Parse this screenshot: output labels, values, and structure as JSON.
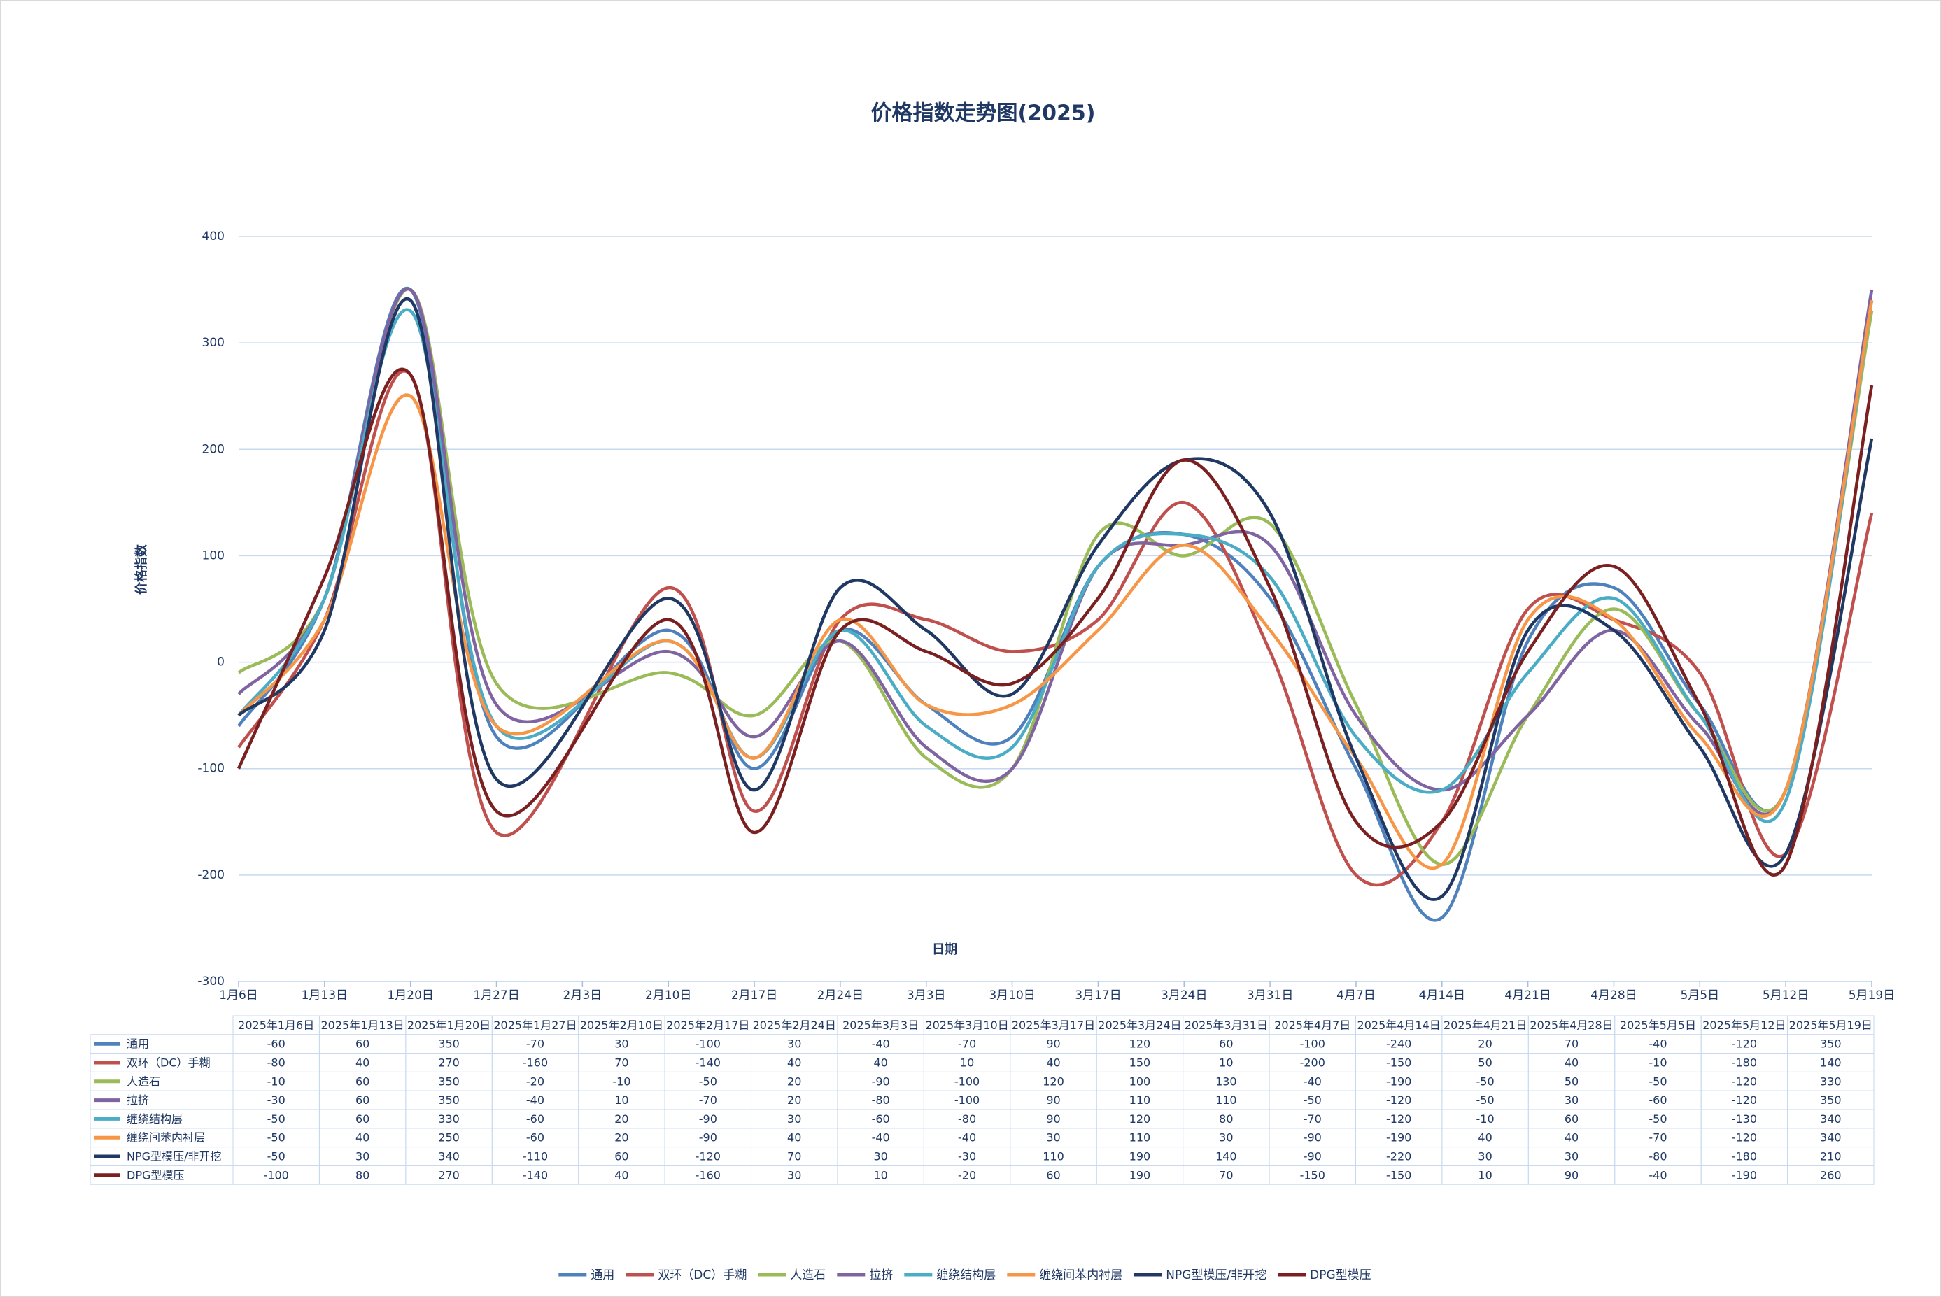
{
  "chart_data": {
    "type": "line",
    "title": "价格指数走势图(2025)",
    "x_label": "日期",
    "y_label": "价格指数",
    "x": [
      "2025年1月6日",
      "2025年1月13日",
      "2025年1月20日",
      "2025年1月27日",
      "2025年2月10日",
      "2025年2月17日",
      "2025年2月24日",
      "2025年3月3日",
      "2025年3月10日",
      "2025年3月17日",
      "2025年3月24日",
      "2025年3月31日",
      "2025年4月7日",
      "2025年4月14日",
      "2025年4月21日",
      "2025年4月28日",
      "2025年5月5日",
      "2025年5月12日",
      "2025年5月19日"
    ],
    "xlim": [
      "2025年1月6日",
      "2025年5月19日"
    ],
    "xticks": [
      {
        "value": "2025年1月6日",
        "label": "1月6日"
      },
      {
        "value": "2025年1月13日",
        "label": "1月13日"
      },
      {
        "value": "2025年1月20日",
        "label": "1月20日"
      },
      {
        "value": "2025年1月27日",
        "label": "1月27日"
      },
      {
        "value": "2025年2月3日",
        "label": "2月3日"
      },
      {
        "value": "2025年2月10日",
        "label": "2月10日"
      },
      {
        "value": "2025年2月17日",
        "label": "2月17日"
      },
      {
        "value": "2025年2月24日",
        "label": "2月24日"
      },
      {
        "value": "2025年3月3日",
        "label": "3月3日"
      },
      {
        "value": "2025年3月10日",
        "label": "3月10日"
      },
      {
        "value": "2025年3月17日",
        "label": "3月17日"
      },
      {
        "value": "2025年3月24日",
        "label": "3月24日"
      },
      {
        "value": "2025年3月31日",
        "label": "3月31日"
      },
      {
        "value": "2025年4月7日",
        "label": "4月7日"
      },
      {
        "value": "2025年4月14日",
        "label": "4月14日"
      },
      {
        "value": "2025年4月21日",
        "label": "4月21日"
      },
      {
        "value": "2025年4月28日",
        "label": "4月28日"
      },
      {
        "value": "2025年5月5日",
        "label": "5月5日"
      },
      {
        "value": "2025年5月12日",
        "label": "5月12日"
      },
      {
        "value": "2025年5月19日",
        "label": "5月19日"
      }
    ],
    "ylim": [
      -300,
      400
    ],
    "yticks": [
      -300,
      -200,
      -100,
      0,
      100,
      200,
      300,
      400
    ],
    "grid": true,
    "smooth": true,
    "legend": "bottom",
    "data_table": true,
    "series": [
      {
        "name": "通用",
        "color": "#4f81bd",
        "values": [
          -60,
          60,
          350,
          -70,
          30,
          -100,
          30,
          -40,
          -70,
          90,
          120,
          60,
          -100,
          -240,
          20,
          70,
          -40,
          -120,
          350
        ]
      },
      {
        "name": "双环（DC）手糊",
        "color": "#c0504d",
        "values": [
          -80,
          40,
          270,
          -160,
          70,
          -140,
          40,
          40,
          10,
          40,
          150,
          10,
          -200,
          -150,
          50,
          40,
          -10,
          -180,
          140
        ]
      },
      {
        "name": "人造石",
        "color": "#9bbb59",
        "values": [
          -10,
          60,
          350,
          -20,
          -10,
          -50,
          20,
          -90,
          -100,
          120,
          100,
          130,
          -40,
          -190,
          -50,
          50,
          -50,
          -120,
          330
        ]
      },
      {
        "name": "拉挤",
        "color": "#8064a2",
        "values": [
          -30,
          60,
          350,
          -40,
          10,
          -70,
          20,
          -80,
          -100,
          90,
          110,
          110,
          -50,
          -120,
          -50,
          30,
          -60,
          -120,
          350
        ]
      },
      {
        "name": "缠绕结构层",
        "color": "#4bacc6",
        "values": [
          -50,
          60,
          330,
          -60,
          20,
          -90,
          30,
          -60,
          -80,
          90,
          120,
          80,
          -70,
          -120,
          -10,
          60,
          -50,
          -130,
          340
        ]
      },
      {
        "name": "缠绕间苯内衬层",
        "color": "#f79646",
        "values": [
          -50,
          40,
          250,
          -60,
          20,
          -90,
          40,
          -40,
          -40,
          30,
          110,
          30,
          -90,
          -190,
          40,
          40,
          -70,
          -120,
          340
        ]
      },
      {
        "name": "NPG型模压/非开挖",
        "color": "#1f3864",
        "values": [
          -50,
          30,
          340,
          -110,
          60,
          -120,
          70,
          30,
          -30,
          110,
          190,
          140,
          -90,
          -220,
          30,
          30,
          -80,
          -180,
          210
        ]
      },
      {
        "name": "DPG型模压",
        "color": "#7b2020",
        "values": [
          -100,
          80,
          270,
          -140,
          40,
          -160,
          30,
          10,
          -20,
          60,
          190,
          70,
          -150,
          -150,
          10,
          90,
          -40,
          -190,
          260
        ]
      }
    ]
  }
}
